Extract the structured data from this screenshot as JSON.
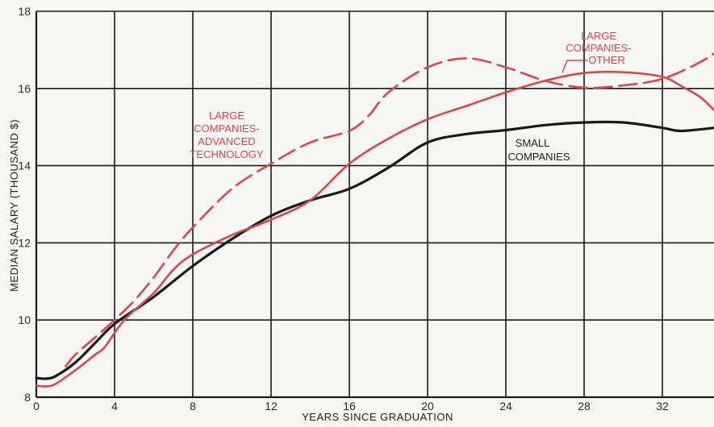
{
  "chart_data": {
    "type": "line",
    "title": "",
    "xlabel": "YEARS SINCE GRADUATION",
    "ylabel": "MEDIAN SALARY (THOUSAND $)",
    "xlim": [
      0,
      35
    ],
    "ylim": [
      8,
      18
    ],
    "x_ticks": [
      0,
      4,
      8,
      12,
      16,
      20,
      24,
      28,
      32
    ],
    "y_ticks": [
      8,
      10,
      12,
      14,
      16,
      18
    ],
    "grid": true,
    "series": [
      {
        "name": "SMALL COMPANIES",
        "color": "#1a1a1a",
        "style": "solid",
        "x": [
          0,
          0.5,
          1,
          2,
          3,
          4,
          6,
          8,
          10,
          12,
          14,
          16,
          18,
          20,
          22,
          24,
          26,
          28,
          30,
          32,
          33,
          35
        ],
        "y": [
          8.5,
          8.48,
          8.55,
          8.9,
          9.4,
          9.9,
          10.6,
          11.4,
          12.1,
          12.7,
          13.1,
          13.4,
          13.95,
          14.6,
          14.82,
          14.92,
          15.05,
          15.12,
          15.12,
          14.98,
          14.9,
          15.0
        ]
      },
      {
        "name": "LARGE COMPANIES- OTHER",
        "color": "#e0444a",
        "style": "solid",
        "x": [
          0,
          0.5,
          1,
          2,
          3,
          3.5,
          4.5,
          6,
          7,
          8,
          10,
          12,
          14,
          16,
          18,
          20,
          22,
          24,
          26,
          28,
          30,
          32,
          33,
          34,
          35
        ],
        "y": [
          8.3,
          8.28,
          8.35,
          8.7,
          9.1,
          9.3,
          10.0,
          10.7,
          11.3,
          11.7,
          12.2,
          12.6,
          13.1,
          14.05,
          14.7,
          15.2,
          15.55,
          15.9,
          16.2,
          16.4,
          16.42,
          16.3,
          16.05,
          15.75,
          15.25
        ]
      },
      {
        "name": "LARGE COMPANIES- ADVANCED TECHNOLOGY",
        "color": "#e0444a",
        "style": "dashed",
        "x": [
          1.5,
          2,
          3,
          4,
          5,
          6,
          7,
          8,
          10,
          12,
          14,
          16,
          17,
          18,
          20,
          22,
          24,
          26,
          28,
          30,
          32,
          34,
          35
        ],
        "y": [
          8.8,
          9.1,
          9.55,
          10.0,
          10.5,
          11.1,
          11.8,
          12.4,
          13.4,
          14.05,
          14.6,
          14.9,
          15.3,
          15.9,
          16.55,
          16.78,
          16.55,
          16.2,
          16.02,
          16.08,
          16.25,
          16.7,
          17.05
        ]
      }
    ],
    "annotations": {
      "advanced_technology": [
        "LARGE",
        "COMPANIES-",
        "ADVANCED",
        "TECHNOLOGY"
      ],
      "other": [
        "LARGE",
        "COMPANIES-",
        "OTHER"
      ],
      "small": [
        "SMALL",
        "COMPANIES"
      ]
    }
  }
}
